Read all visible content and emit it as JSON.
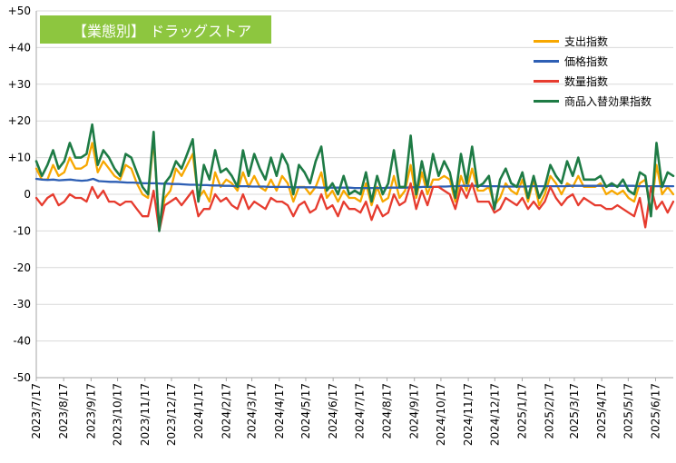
{
  "title": "【業態別】 ドラッグストア",
  "title_bg": "#8dc63f",
  "chart_data": {
    "type": "line",
    "title": "【業態別】 ドラッグストア",
    "xlabel": "",
    "ylabel": "",
    "ylim": [
      -50,
      50
    ],
    "yticks": [
      50,
      40,
      30,
      20,
      10,
      0,
      -10,
      -20,
      -30,
      -40,
      -50
    ],
    "ytick_labels": [
      "+50",
      "+40",
      "+30",
      "+20",
      "+10",
      "0",
      "-10",
      "-20",
      "-30",
      "-40",
      "-50"
    ],
    "x_tick_labels": [
      "2023/7/17",
      "2023/8/17",
      "2023/9/17",
      "2023/10/17",
      "2023/11/17",
      "2023/12/17",
      "2024/1/17",
      "2024/2/17",
      "2024/3/17",
      "2024/4/17",
      "2024/5/17",
      "2024/6/17",
      "2024/7/17",
      "2024/8/17",
      "2024/9/17",
      "2024/10/17",
      "2024/11/17",
      "2024/12/17",
      "2025/1/17",
      "2025/2/17",
      "2025/3/17",
      "2025/4/17",
      "2025/5/17",
      "2025/6/17"
    ],
    "x_start": "2023-07-17",
    "x_end": "2025-07-07",
    "grid": "horizontal",
    "legend_position": "top-right",
    "series": [
      {
        "name": "支出指数",
        "color": "#f7a700",
        "values": [
          7,
          4,
          4,
          8,
          5,
          6,
          10,
          7,
          7,
          8,
          14,
          6,
          9,
          7,
          5,
          4,
          8,
          7,
          3,
          0,
          -1,
          15,
          -9,
          -1,
          1,
          7,
          5,
          8,
          11,
          -1,
          1,
          -2,
          6,
          2,
          4,
          3,
          1,
          6,
          2,
          5,
          2,
          1,
          4,
          1,
          5,
          3,
          -2,
          2,
          2,
          0,
          2,
          6,
          -1,
          1,
          -2,
          1,
          -1,
          -1,
          -2,
          3,
          -3,
          2,
          -2,
          -1,
          5,
          -1,
          1,
          8,
          -1,
          6,
          0,
          4,
          4,
          5,
          4,
          -2,
          5,
          1,
          7,
          1,
          1,
          2,
          -3,
          -1,
          3,
          1,
          0,
          4,
          -2,
          4,
          -3,
          0,
          5,
          3,
          0,
          3,
          2,
          5,
          2,
          2,
          2,
          3,
          0,
          1,
          0,
          1,
          -1,
          -2,
          3,
          4,
          -5,
          8,
          0,
          2,
          0
        ]
      },
      {
        "name": "価格指数",
        "color": "#2e5fb4",
        "values": [
          4.2,
          4.0,
          3.9,
          4.0,
          3.8,
          3.9,
          4.0,
          3.8,
          3.7,
          3.8,
          4.2,
          3.6,
          3.5,
          3.4,
          3.4,
          3.3,
          3.2,
          3.2,
          3.1,
          3.0,
          3.0,
          3.0,
          2.9,
          2.9,
          2.8,
          2.8,
          2.7,
          2.6,
          2.6,
          2.5,
          2.5,
          2.4,
          2.4,
          2.3,
          2.3,
          2.2,
          2.2,
          2.2,
          2.1,
          2.1,
          2.1,
          2.0,
          2.0,
          2.0,
          2.0,
          1.9,
          1.9,
          1.9,
          1.9,
          1.9,
          1.8,
          1.8,
          1.8,
          1.8,
          1.8,
          1.8,
          1.7,
          1.7,
          1.7,
          1.7,
          1.7,
          1.7,
          1.8,
          1.8,
          1.8,
          1.8,
          1.9,
          1.9,
          2.0,
          2.0,
          2.0,
          2.1,
          2.1,
          2.2,
          2.2,
          2.3,
          2.3,
          2.3,
          2.3,
          2.2,
          2.2,
          2.2,
          2.1,
          2.1,
          2.1,
          2.1,
          2.1,
          2.2,
          2.2,
          2.2,
          2.2,
          2.2,
          2.2,
          2.2,
          2.3,
          2.3,
          2.3,
          2.3,
          2.3,
          2.3,
          2.3,
          2.3,
          2.3,
          2.3,
          2.3,
          2.3,
          2.2,
          2.2,
          2.2,
          2.2,
          2.2,
          2.2,
          2.2
        ]
      },
      {
        "name": "数量指数",
        "color": "#e63b2e",
        "values": [
          -1,
          -3,
          -1,
          0,
          -3,
          -2,
          0,
          -1,
          -1,
          -2,
          2,
          -1,
          1,
          -2,
          -2,
          -3,
          -2,
          -2,
          -4,
          -6,
          -6,
          1,
          -10,
          -3,
          -2,
          -1,
          -3,
          -1,
          1,
          -6,
          -4,
          -4,
          0,
          -2,
          -1,
          -3,
          -4,
          0,
          -4,
          -2,
          -3,
          -4,
          -1,
          -2,
          -2,
          -3,
          -6,
          -3,
          -2,
          -5,
          -4,
          0,
          -4,
          -3,
          -6,
          -2,
          -4,
          -4,
          -5,
          -2,
          -7,
          -3,
          -6,
          -5,
          0,
          -3,
          -2,
          3,
          -4,
          1,
          -3,
          2,
          2,
          1,
          0,
          -4,
          2,
          -1,
          3,
          -2,
          -2,
          -2,
          -5,
          -4,
          -1,
          -2,
          -3,
          -1,
          -4,
          -2,
          -4,
          -2,
          2,
          -1,
          -3,
          -1,
          0,
          -3,
          -1,
          -2,
          -3,
          -3,
          -4,
          -4,
          -3,
          -4,
          -5,
          -6,
          -1,
          -9,
          2,
          -4,
          -2,
          -5,
          -2
        ]
      },
      {
        "name": "商品入替効果指数",
        "color": "#1e7b45",
        "values": [
          9,
          5,
          8,
          12,
          7,
          9,
          14,
          10,
          10,
          11,
          19,
          8,
          12,
          10,
          7,
          5,
          11,
          10,
          6,
          2,
          0,
          17,
          -10,
          3,
          5,
          9,
          7,
          11,
          15,
          -2,
          8,
          4,
          12,
          6,
          7,
          5,
          2,
          12,
          5,
          11,
          7,
          4,
          10,
          5,
          11,
          8,
          0,
          8,
          6,
          3,
          9,
          13,
          1,
          3,
          0,
          5,
          0,
          1,
          0,
          6,
          -2,
          5,
          0,
          3,
          12,
          2,
          2,
          16,
          0,
          9,
          2,
          11,
          5,
          9,
          6,
          -1,
          11,
          3,
          13,
          2,
          3,
          5,
          -4,
          4,
          7,
          3,
          2,
          6,
          -1,
          5,
          -1,
          2,
          8,
          5,
          3,
          9,
          5,
          10,
          4,
          4,
          4,
          5,
          2,
          3,
          2,
          4,
          1,
          0,
          6,
          5,
          -6,
          14,
          2,
          6,
          5
        ]
      }
    ]
  },
  "legend": {
    "items": [
      {
        "label": "支出指数",
        "color": "#f7a700"
      },
      {
        "label": "価格指数",
        "color": "#2e5fb4"
      },
      {
        "label": "数量指数",
        "color": "#e63b2e"
      },
      {
        "label": "商品入替効果指数",
        "color": "#1e7b45"
      }
    ]
  },
  "colors": {
    "axis": "#a6a6a6",
    "grid": "#d9d9d9",
    "title_text": "#ffffff"
  }
}
